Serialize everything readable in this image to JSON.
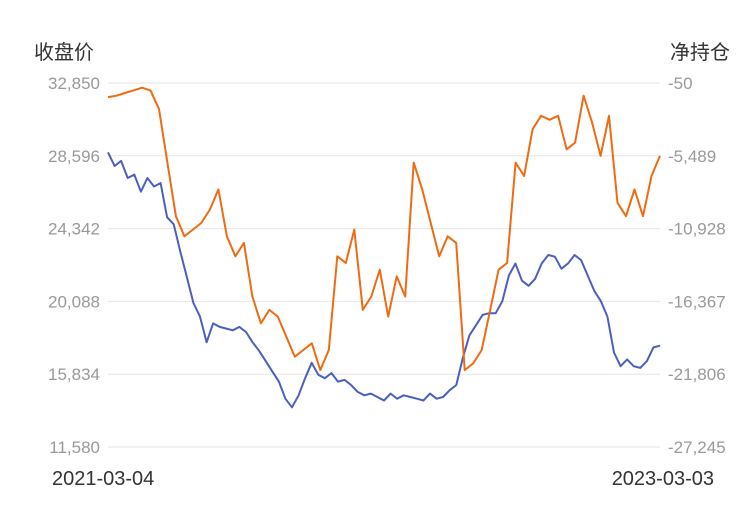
{
  "chart_data": {
    "type": "line",
    "y_left_label": "收盘价",
    "y_right_label": "净持仓",
    "x_start_label": "2021-03-04",
    "x_end_label": "2023-03-03",
    "y_left_ticks": [
      "32,850",
      "28,596",
      "24,342",
      "20,088",
      "15,834",
      "11,580"
    ],
    "y_right_ticks": [
      "-50",
      "-5,489",
      "-10,928",
      "-16,367",
      "-21,806",
      "-27,245"
    ],
    "y_left_range": [
      11580,
      32850
    ],
    "y_right_range": [
      -27245,
      -50
    ],
    "grid": true,
    "series": [
      {
        "axis": "left",
        "color": "#4a5fc1",
        "values": [
          28800,
          28000,
          28300,
          27300,
          27500,
          26500,
          27300,
          26800,
          27000,
          25000,
          24600,
          23000,
          21500,
          20000,
          19200,
          17700,
          18800,
          18600,
          18500,
          18400,
          18600,
          18300,
          17700,
          17200,
          16600,
          16000,
          15400,
          14400,
          13900,
          14600,
          15600,
          16500,
          15800,
          15600,
          15900,
          15400,
          15500,
          15200,
          14800,
          14600,
          14700,
          14500,
          14300,
          14700,
          14400,
          14600,
          14500,
          14400,
          14300,
          14700,
          14400,
          14500,
          14900,
          15200,
          16800,
          18100,
          18700,
          19300,
          19400,
          19400,
          20100,
          21600,
          22300,
          21300,
          21000,
          21400,
          22300,
          22800,
          22700,
          22000,
          22300,
          22800,
          22500,
          21600,
          20700,
          20100,
          19200,
          17100,
          16300,
          16700,
          16300,
          16200,
          16600,
          17400,
          17500
        ]
      },
      {
        "axis": "right",
        "color": "#f06a12",
        "values": [
          -1100,
          -1000,
          -800,
          -600,
          -400,
          -600,
          -2000,
          -6000,
          -10000,
          -11500,
          -11000,
          -10500,
          -9500,
          -8000,
          -11500,
          -13000,
          -12000,
          -16000,
          -18000,
          -17000,
          -17500,
          -19000,
          -20500,
          -20000,
          -19500,
          -21500,
          -20000,
          -13000,
          -13500,
          -11000,
          -17000,
          -16000,
          -14000,
          -17500,
          -14500,
          -16000,
          -6000,
          -8000,
          -10500,
          -13000,
          -11500,
          -12000,
          -21500,
          -21000,
          -20000,
          -17000,
          -14000,
          -13500,
          -6000,
          -7000,
          -3500,
          -2500,
          -2800,
          -2500,
          -5000,
          -4500,
          -1000,
          -3000,
          -5500,
          -2500,
          -9000,
          -10000,
          -8000,
          -10000,
          -7000,
          -5500
        ]
      }
    ]
  }
}
